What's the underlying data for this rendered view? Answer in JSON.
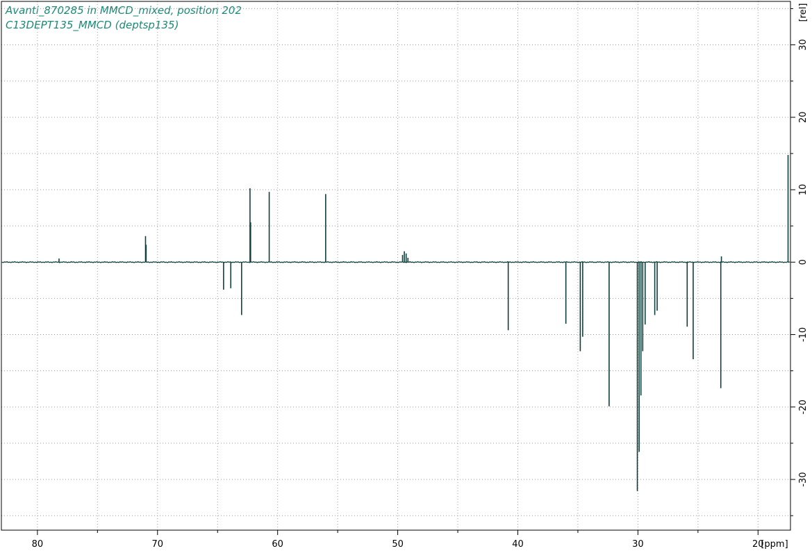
{
  "colors": {
    "spectrum": "#0f3f3a",
    "title": "#1a8a76",
    "axis": "#000000",
    "grid": "#9a9a9a"
  },
  "header": {
    "line1": "Avanti_870285 in MMCD_mixed, position 202",
    "line2": "C13DEPT135_MMCD (deptsp135)"
  },
  "chart_data": {
    "type": "line",
    "title": "",
    "xlabel": "[ppm]",
    "ylabel": "[rel]",
    "xlim": [
      83.0,
      17.3
    ],
    "ylim": [
      -37.0,
      36.0
    ],
    "x_ticks": [
      80,
      70,
      60,
      50,
      40,
      30,
      20
    ],
    "y_ticks": [
      30,
      20,
      10,
      0,
      -10,
      -20,
      -30
    ],
    "grid": true,
    "series": [
      {
        "peaks": [
          {
            "ppm": 78.2,
            "height": 0.5
          },
          {
            "ppm": 71.0,
            "height": 3.6
          },
          {
            "ppm": 70.95,
            "height": 2.4
          },
          {
            "ppm": 64.5,
            "height": -3.8
          },
          {
            "ppm": 63.9,
            "height": -3.6
          },
          {
            "ppm": 63.0,
            "height": -7.3
          },
          {
            "ppm": 62.3,
            "height": 10.2
          },
          {
            "ppm": 62.25,
            "height": 5.5
          },
          {
            "ppm": 60.7,
            "height": 9.7
          },
          {
            "ppm": 56.0,
            "height": 9.4
          },
          {
            "ppm": 49.6,
            "height": 1.0
          },
          {
            "ppm": 49.45,
            "height": 1.5
          },
          {
            "ppm": 49.3,
            "height": 1.2
          },
          {
            "ppm": 49.15,
            "height": 0.6
          },
          {
            "ppm": 40.8,
            "height": -9.4
          },
          {
            "ppm": 36.0,
            "height": -8.5
          },
          {
            "ppm": 34.8,
            "height": -12.3
          },
          {
            "ppm": 34.6,
            "height": -10.3
          },
          {
            "ppm": 32.4,
            "height": -19.9
          },
          {
            "ppm": 30.05,
            "height": -31.6
          },
          {
            "ppm": 29.9,
            "height": -26.2
          },
          {
            "ppm": 29.75,
            "height": -18.4
          },
          {
            "ppm": 29.6,
            "height": -12.3
          },
          {
            "ppm": 29.4,
            "height": -8.6
          },
          {
            "ppm": 28.6,
            "height": -7.3
          },
          {
            "ppm": 28.4,
            "height": -6.7
          },
          {
            "ppm": 25.9,
            "height": -8.9
          },
          {
            "ppm": 25.4,
            "height": -13.4
          },
          {
            "ppm": 23.1,
            "height": -17.4
          },
          {
            "ppm": 23.05,
            "height": 0.8
          },
          {
            "ppm": 17.5,
            "height": 14.8
          }
        ]
      }
    ]
  }
}
